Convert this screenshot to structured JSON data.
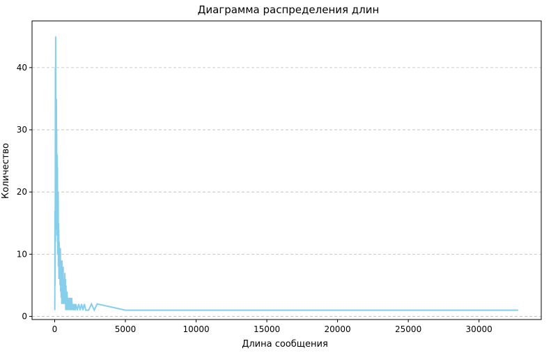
{
  "chart_data": {
    "type": "line",
    "title": "Диаграмма распределения длин",
    "xlabel": "Длина сообщения",
    "ylabel": "Количество",
    "xlim": [
      -1600,
      34400
    ],
    "ylim": [
      -0.5,
      47.5
    ],
    "xticks": [
      0,
      5000,
      10000,
      15000,
      20000,
      25000,
      30000
    ],
    "yticks": [
      0,
      10,
      20,
      30,
      40
    ],
    "grid": "y-dashed",
    "line_color": "#87CEEB",
    "series": [
      {
        "x": [
          10,
          20,
          30,
          40,
          50,
          60,
          70,
          80,
          90,
          100,
          110,
          120,
          130,
          140,
          150,
          160,
          170,
          180,
          190,
          200,
          210,
          220,
          230,
          240,
          250,
          260,
          270,
          280,
          290,
          300,
          320,
          340,
          360,
          380,
          400,
          420,
          440,
          460,
          480,
          500,
          520,
          540,
          560,
          580,
          600,
          620,
          640,
          660,
          680,
          700,
          720,
          740,
          760,
          780,
          800,
          820,
          840,
          860,
          880,
          900,
          920,
          940,
          960,
          980,
          1000,
          1050,
          1100,
          1150,
          1200,
          1250,
          1300,
          1350,
          1400,
          1450,
          1500,
          1600,
          1700,
          1800,
          1900,
          2000,
          2100,
          2200,
          2400,
          2600,
          2800,
          3000,
          5000,
          10000,
          15000,
          20000,
          25000,
          30000,
          32767
        ],
        "values": [
          1,
          17,
          5,
          13,
          40,
          12,
          45,
          20,
          33,
          14,
          27,
          35,
          16,
          30,
          14,
          22,
          13,
          26,
          18,
          24,
          10,
          19,
          12,
          13,
          20,
          8,
          15,
          9,
          14,
          6,
          12,
          7,
          10,
          5,
          11,
          4,
          9,
          3,
          8,
          2,
          9,
          3,
          7,
          2,
          8,
          3,
          6,
          2,
          5,
          3,
          7,
          2,
          6,
          1,
          5,
          2,
          4,
          1,
          4,
          2,
          3,
          1,
          3,
          2,
          3,
          1,
          3,
          1,
          3,
          1,
          2,
          1,
          2,
          1,
          2,
          1,
          2,
          1,
          2,
          1,
          2,
          1,
          1,
          2,
          1,
          2,
          1,
          1,
          1,
          1,
          1,
          1,
          1
        ]
      }
    ]
  }
}
